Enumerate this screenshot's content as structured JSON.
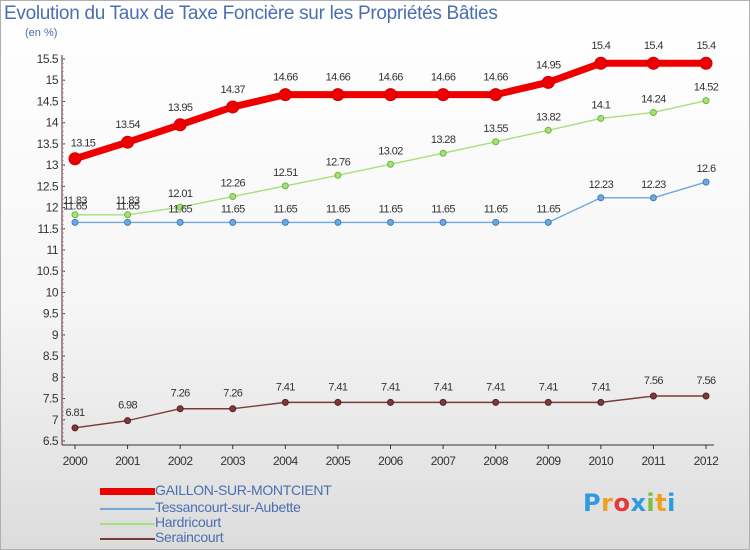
{
  "header": {
    "title": "Evolution du Taux de Taxe Foncière sur les Propriétés Bâties",
    "subtitle": "(en %)"
  },
  "logo": {
    "letters": [
      "P",
      "r",
      "o",
      "x",
      "i",
      "t",
      "i"
    ],
    "colors": [
      "#2e9be0",
      "#f0a020",
      "#e23a3a",
      "#2e9be0",
      "#7ac142",
      "#f0a020",
      "#2e9be0"
    ]
  },
  "chart_data": {
    "type": "line",
    "x": [
      "2000",
      "2001",
      "2002",
      "2003",
      "2004",
      "2005",
      "2006",
      "2007",
      "2008",
      "2009",
      "2010",
      "2011",
      "2012"
    ],
    "ylim": [
      6.5,
      15.5
    ],
    "yticks": [
      "6.5",
      "7",
      "7.5",
      "8",
      "8.5",
      "9",
      "9.5",
      "10",
      "10.5",
      "11",
      "11.5",
      "12",
      "12.5",
      "13",
      "13.5",
      "14",
      "14.5",
      "15",
      "15.5"
    ],
    "grid": false,
    "legend_position": "bottom-left",
    "series": [
      {
        "name": "GAILLON-SUR-MONTCIENT",
        "color": "#ee0000",
        "line_width": 7,
        "values": [
          13.15,
          13.54,
          13.95,
          14.37,
          14.66,
          14.66,
          14.66,
          14.66,
          14.66,
          14.95,
          15.4,
          15.4,
          15.4
        ],
        "labels": [
          "13.15",
          "13.54",
          "13.95",
          "14.37",
          "14.66",
          "14.66",
          "14.66",
          "14.66",
          "14.66",
          "14.95",
          "15.4",
          "15.4",
          "15.4"
        ]
      },
      {
        "name": "Tessancourt-sur-Aubette",
        "color": "#6fa8dc",
        "line_width": 1.4,
        "values": [
          11.65,
          11.65,
          11.65,
          11.65,
          11.65,
          11.65,
          11.65,
          11.65,
          11.65,
          11.65,
          12.23,
          12.23,
          12.6
        ],
        "labels": [
          "11.65",
          "11.65",
          "11.65",
          "11.65",
          "11.65",
          "11.65",
          "11.65",
          "11.65",
          "11.65",
          "11.65",
          "12.23",
          "12.23",
          "12.6"
        ]
      },
      {
        "name": "Hardricourt",
        "color": "#a6e07a",
        "line_width": 1.4,
        "values": [
          11.83,
          11.83,
          12.01,
          12.26,
          12.51,
          12.76,
          13.02,
          13.28,
          13.55,
          13.82,
          14.1,
          14.24,
          14.52
        ],
        "labels": [
          "11.83",
          "11.83",
          "12.01",
          "12.26",
          "12.51",
          "12.76",
          "13.02",
          "13.28",
          "13.55",
          "13.82",
          "14.1",
          "14.24",
          "14.52"
        ]
      },
      {
        "name": "Seraincourt",
        "color": "#7a3b3b",
        "line_width": 1.4,
        "values": [
          6.81,
          6.98,
          7.26,
          7.26,
          7.41,
          7.41,
          7.41,
          7.41,
          7.41,
          7.41,
          7.41,
          7.56,
          7.56
        ],
        "labels": [
          "6.81",
          "6.98",
          "7.26",
          "7.26",
          "7.41",
          "7.41",
          "7.41",
          "7.41",
          "7.41",
          "7.41",
          "7.41",
          "7.56",
          "7.56"
        ]
      }
    ]
  }
}
